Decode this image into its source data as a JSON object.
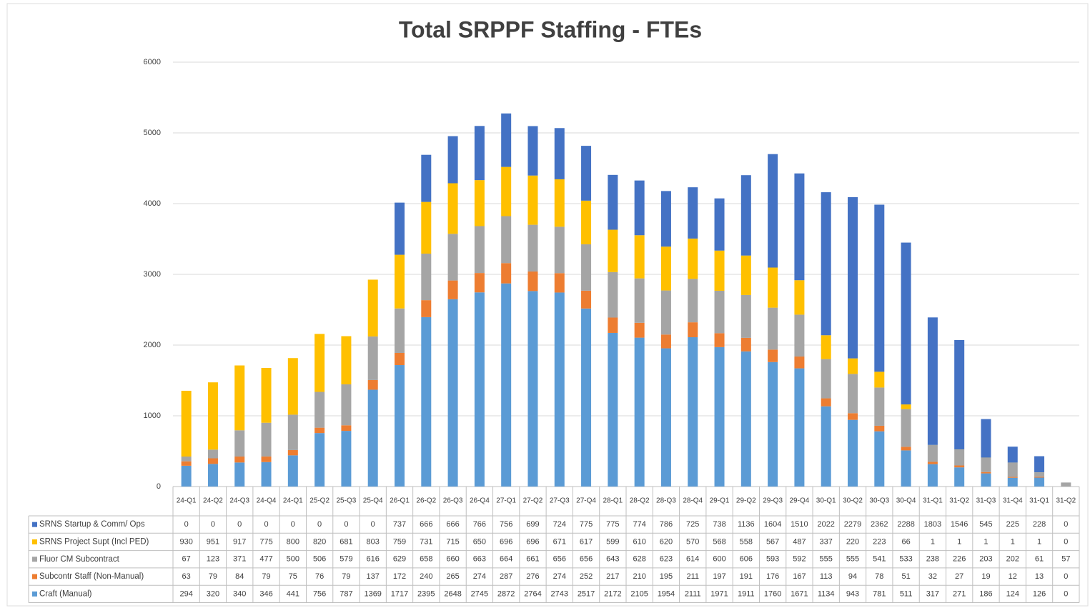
{
  "chart_data": {
    "type": "stacked_bar",
    "title": "Total SRPPF Staffing - FTEs",
    "categories": [
      "24-Q1",
      "24-Q2",
      "24-Q3",
      "24-Q4",
      "24-Q1",
      "25-Q2",
      "25-Q3",
      "25-Q4",
      "26-Q1",
      "26-Q2",
      "26-Q3",
      "26-Q4",
      "27-Q1",
      "27-Q2",
      "27-Q3",
      "27-Q4",
      "28-Q1",
      "28-Q2",
      "28-Q3",
      "28-Q4",
      "29-Q1",
      "29-Q2",
      "29-Q3",
      "29-Q4",
      "30-Q1",
      "30-Q2",
      "30-Q3",
      "30-Q4",
      "31-Q1",
      "31-Q2",
      "31-Q3",
      "31-Q4",
      "31-Q1",
      "31-Q2"
    ],
    "series": [
      {
        "name": "SRNS Startup & Comm/ Ops",
        "color": "#4472c4",
        "values": [
          0,
          0,
          0,
          0,
          0,
          0,
          0,
          0,
          737,
          666,
          666,
          766,
          756,
          699,
          724,
          775,
          775,
          774,
          786,
          725,
          738,
          1136,
          1604,
          1510,
          2022,
          2279,
          2362,
          2288,
          1803,
          1546,
          545,
          225,
          228,
          0
        ]
      },
      {
        "name": "SRNS Project Supt (Incl PED)",
        "color": "#ffc000",
        "values": [
          930,
          951,
          917,
          775,
          800,
          820,
          681,
          803,
          759,
          731,
          715,
          650,
          696,
          696,
          671,
          617,
          599,
          610,
          620,
          570,
          568,
          558,
          567,
          487,
          337,
          220,
          223,
          66,
          1,
          1,
          1,
          1,
          1,
          0
        ]
      },
      {
        "name": "Fluor CM Subcontract",
        "color": "#a5a5a5",
        "values": [
          67,
          123,
          371,
          477,
          500,
          506,
          579,
          616,
          629,
          658,
          660,
          663,
          664,
          661,
          656,
          656,
          643,
          628,
          623,
          614,
          600,
          606,
          593,
          592,
          555,
          555,
          541,
          533,
          238,
          226,
          203,
          202,
          61,
          57
        ]
      },
      {
        "name": "Subcontr Staff (Non-Manual)",
        "color": "#ed7d31",
        "values": [
          63,
          79,
          84,
          79,
          75,
          76,
          79,
          137,
          172,
          240,
          265,
          274,
          287,
          276,
          274,
          252,
          217,
          210,
          195,
          211,
          197,
          191,
          176,
          167,
          113,
          94,
          78,
          51,
          32,
          27,
          19,
          12,
          13,
          0
        ]
      },
      {
        "name": "Craft (Manual)",
        "color": "#5b9bd5",
        "values": [
          294,
          320,
          340,
          346,
          441,
          756,
          787,
          1369,
          1717,
          2395,
          2648,
          2745,
          2872,
          2764,
          2743,
          2517,
          2172,
          2105,
          1954,
          2111,
          1971,
          1911,
          1760,
          1671,
          1134,
          943,
          781,
          511,
          317,
          271,
          186,
          124,
          126,
          0
        ]
      }
    ],
    "ylim": [
      0,
      6000
    ],
    "yticks": [
      0,
      1000,
      2000,
      3000,
      4000,
      5000,
      6000
    ],
    "grid": true
  }
}
